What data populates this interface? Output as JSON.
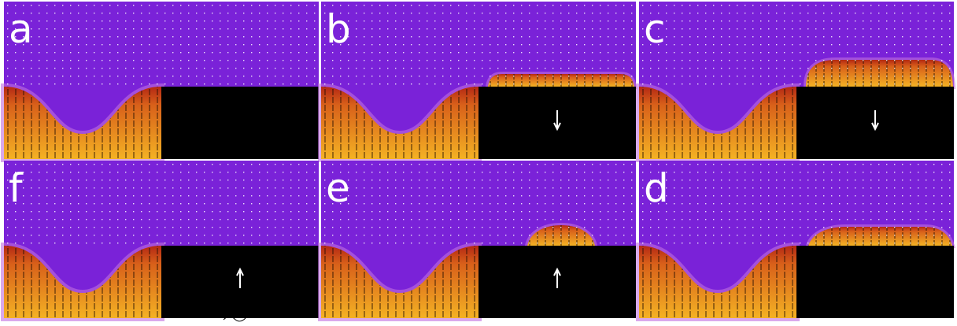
{
  "panels": [
    {
      "label": "a"
    },
    {
      "label": "b"
    },
    {
      "label": "c"
    },
    {
      "label": "f"
    },
    {
      "label": "e"
    },
    {
      "label": "d"
    }
  ]
}
